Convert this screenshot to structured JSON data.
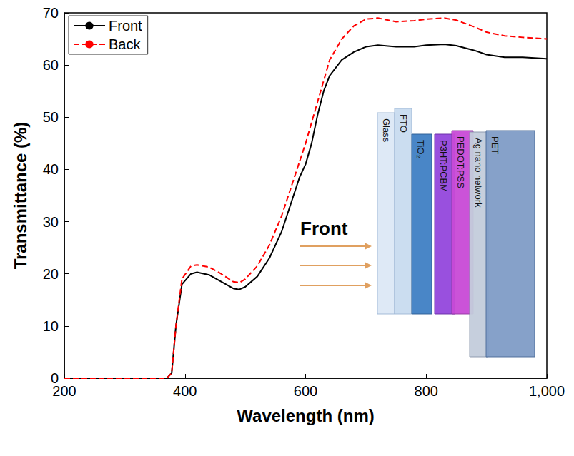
{
  "chart_data": {
    "type": "line",
    "x_label": "Wavelength (nm)",
    "y_label": "Transmittance (%)",
    "x": [
      200,
      300,
      370,
      378,
      385,
      395,
      410,
      420,
      440,
      460,
      480,
      490,
      500,
      520,
      540,
      560,
      580,
      590,
      600,
      610,
      620,
      630,
      640,
      660,
      680,
      700,
      720,
      750,
      780,
      800,
      830,
      850,
      880,
      900,
      930,
      960,
      1000
    ],
    "series": [
      {
        "name": "Front",
        "color": "#000000",
        "line_style": "solid",
        "values": [
          0,
          0,
          0,
          1,
          10,
          18,
          20,
          20.3,
          19.8,
          18.5,
          17.2,
          17,
          17.5,
          19.5,
          23,
          28,
          35,
          38.5,
          41,
          45,
          50.5,
          55,
          58,
          61,
          62.5,
          63.5,
          63.8,
          63.5,
          63.5,
          63.8,
          64,
          63.7,
          62.8,
          62,
          61.5,
          61.5,
          61.2
        ]
      },
      {
        "name": "Back",
        "color": "#ff0000",
        "line_style": "dashed",
        "values": [
          0,
          0,
          0,
          1,
          10,
          19,
          21.5,
          21.7,
          21.3,
          20,
          18.5,
          18.3,
          19,
          21.5,
          25.5,
          31,
          38,
          41.5,
          45,
          49,
          53,
          57,
          61,
          65,
          67.5,
          68.8,
          69,
          68.3,
          68.5,
          68.8,
          69,
          68.6,
          67.3,
          66.3,
          65.6,
          65.3,
          65
        ]
      }
    ],
    "xlim": [
      200,
      1000
    ],
    "xticks": [
      200,
      400,
      600,
      800,
      1000
    ],
    "ylim": [
      0,
      70
    ],
    "yticks": [
      0,
      10,
      20,
      30,
      40,
      50,
      60,
      70
    ],
    "grid": false,
    "legend": "upper left",
    "annotations": {
      "arrow_label": "Front",
      "layers": [
        "Glass",
        "FTO",
        "TiO₂",
        "P3HT:PCBM",
        "PEDOT:PSS",
        "Ag nano network",
        "PET"
      ]
    }
  }
}
